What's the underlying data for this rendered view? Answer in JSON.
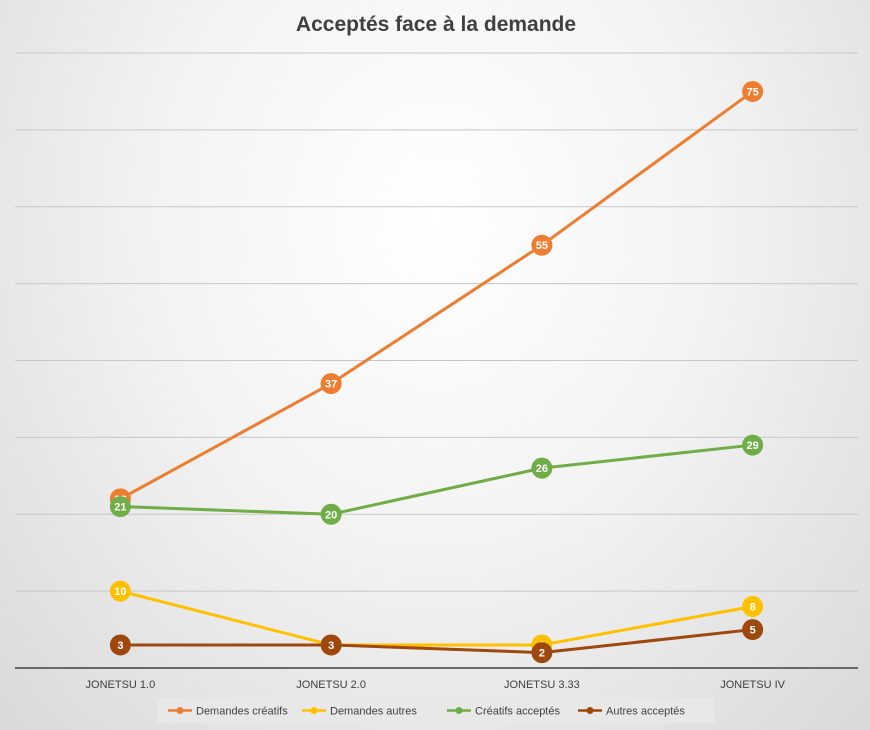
{
  "chart_data": {
    "type": "line",
    "title": "Acceptés face à la demande",
    "xlabel": "",
    "ylabel": "",
    "categories": [
      "JONETSU 1.0",
      "JONETSU 2.0",
      "JONETSU 3.33",
      "JONETSU IV"
    ],
    "ylim": [
      0,
      80
    ],
    "y_gridlines": [
      0,
      10,
      20,
      30,
      40,
      50,
      60,
      70,
      80
    ],
    "y_tick_labels_visible": false,
    "grid": true,
    "legend": "bottom",
    "series": [
      {
        "name": "Demandes créatifs",
        "color": "#ED7D31",
        "values": [
          22,
          37,
          55,
          75
        ]
      },
      {
        "name": "Demandes autres",
        "color": "#FFC000",
        "values": [
          10,
          3,
          3,
          8
        ]
      },
      {
        "name": "Créatifs acceptés",
        "color": "#70AD47",
        "values": [
          21,
          20,
          26,
          29
        ]
      },
      {
        "name": "Autres acceptés",
        "color": "#9E480E",
        "values": [
          3,
          3,
          2,
          5
        ]
      }
    ]
  }
}
